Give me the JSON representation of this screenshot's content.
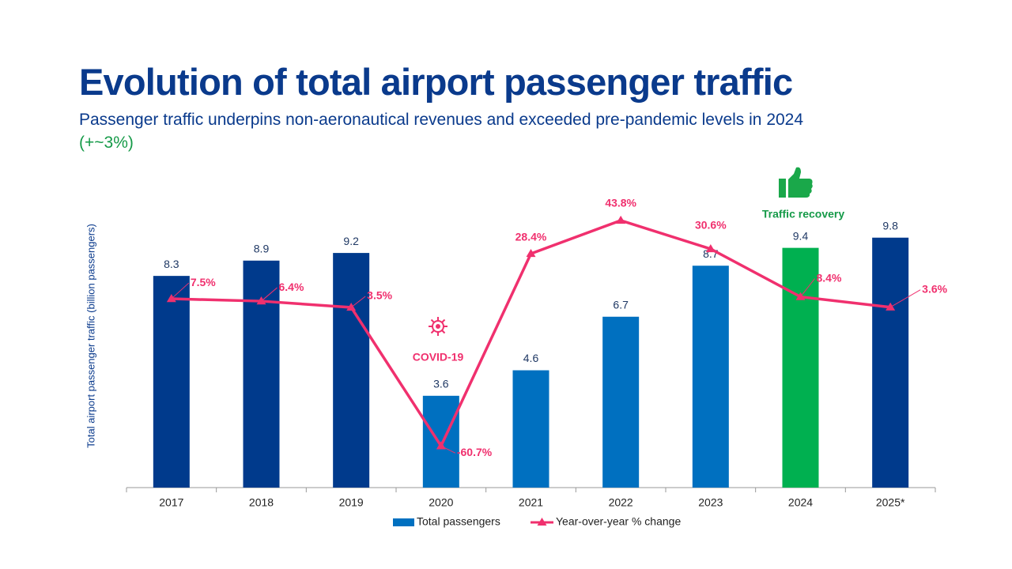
{
  "chart_data": {
    "type": "bar",
    "title": "Evolution of total airport passenger traffic",
    "subtitle": "Passenger traffic underpins non-aeronautical revenues and exceeded pre-pandemic levels in 2024",
    "subtitle_highlight": "(+~3%)",
    "y_label": "Total airport passenger traffic (billion passengers)",
    "annotations": [
      "COVID-19",
      "Traffic recovery"
    ],
    "categories": [
      "2017",
      "2018",
      "2019",
      "2020",
      "2021",
      "2022",
      "2023",
      "2024",
      "2025*"
    ],
    "series": [
      {
        "name": "Total passengers",
        "type": "bar",
        "color": "#0070c0",
        "colors": [
          "#003a8c",
          "#003a8c",
          "#003a8c",
          "#0070c0",
          "#0070c0",
          "#0070c0",
          "#0070c0",
          "#00b050",
          "#003a8c"
        ],
        "values": [
          8.3,
          8.9,
          9.2,
          3.6,
          4.6,
          6.7,
          8.7,
          9.4,
          9.8
        ]
      },
      {
        "name": "Year-over-year % change",
        "type": "line",
        "axis": "y2",
        "color": "#f0306e",
        "values": [
          7.5,
          6.4,
          3.5,
          -60.7,
          28.4,
          43.8,
          30.6,
          8.4,
          3.6
        ],
        "value_labels": [
          "7.5%",
          "6.4%",
          "3.5%",
          "-60.7%",
          "28.4%",
          "43.8%",
          "30.6%",
          "8.4%",
          "3.6%"
        ]
      }
    ],
    "ylim": [
      0,
      11
    ],
    "y2lim": [
      -80,
      50
    ],
    "grid": false,
    "legend": "bottom"
  }
}
